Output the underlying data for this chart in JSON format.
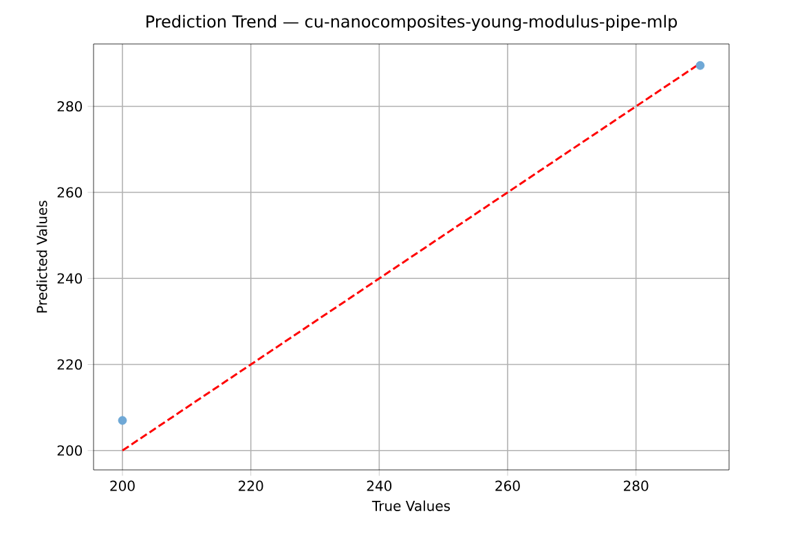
{
  "chart_data": {
    "type": "scatter",
    "title": "Prediction Trend — cu-nanocomposites-young-modulus-pipe-mlp",
    "xlabel": "True Values",
    "ylabel": "Predicted Values",
    "xlim": [
      195.5,
      294.5
    ],
    "ylim": [
      195.5,
      294.5
    ],
    "xticks": [
      200,
      220,
      240,
      260,
      280
    ],
    "yticks": [
      200,
      220,
      240,
      260,
      280
    ],
    "grid": true,
    "x": [
      200,
      290
    ],
    "series": [
      {
        "color": "#6fa8d6",
        "marker": "circle",
        "values": [
          207,
          289.5
        ]
      },
      {
        "type": "line",
        "color": "#ff0000",
        "line_style": "dashed",
        "marker": "none",
        "values": [
          200,
          290
        ]
      }
    ]
  }
}
